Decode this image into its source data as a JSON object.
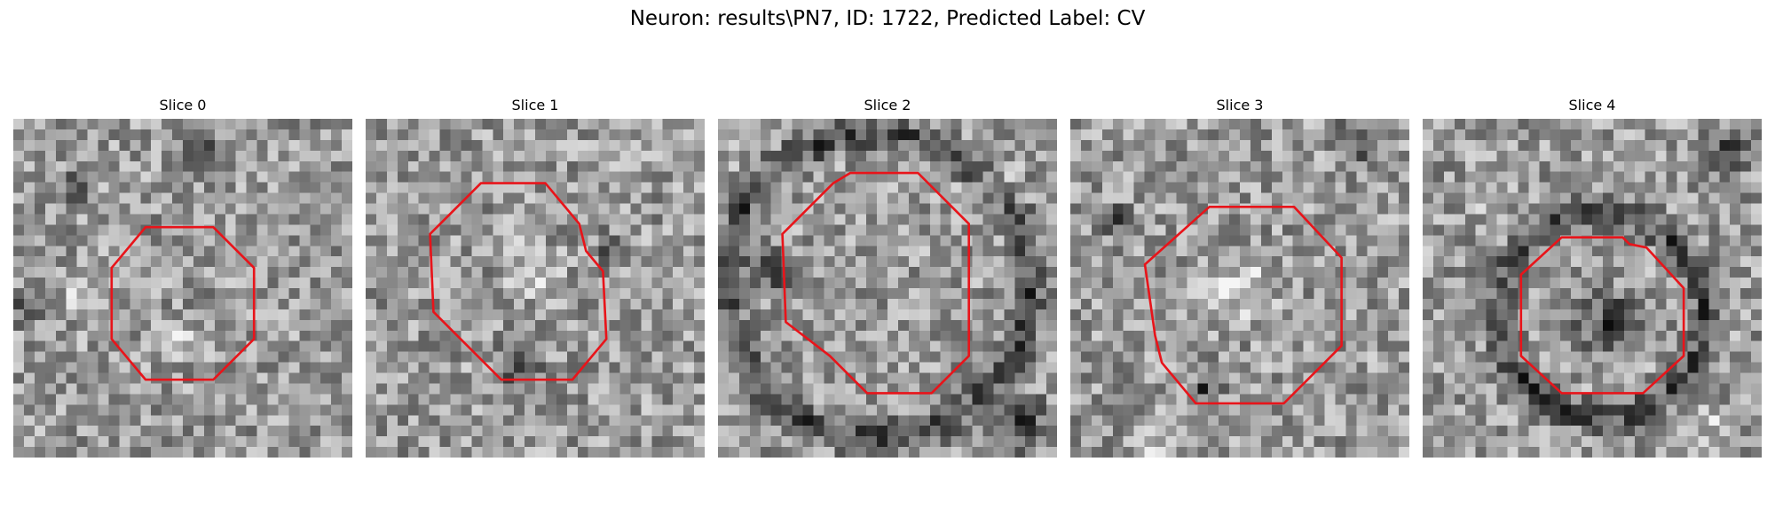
{
  "figure": {
    "title": "Neuron: results\\PN7, ID: 1722, Predicted Label: CV"
  },
  "panels": [
    {
      "title": "Slice 0",
      "contour_color": "#e8141a",
      "contour": [
        [
          0.39,
          0.32
        ],
        [
          0.59,
          0.32
        ],
        [
          0.71,
          0.44
        ],
        [
          0.71,
          0.65
        ],
        [
          0.59,
          0.77
        ],
        [
          0.39,
          0.77
        ],
        [
          0.29,
          0.65
        ],
        [
          0.29,
          0.44
        ]
      ],
      "dark_regions": [
        [
          0.05,
          0.55,
          0.08
        ],
        [
          0.55,
          0.1,
          0.07
        ],
        [
          0.2,
          0.2,
          0.06
        ]
      ],
      "bright_regions": [
        [
          0.48,
          0.66,
          0.08
        ],
        [
          0.2,
          0.52,
          0.06
        ]
      ]
    },
    {
      "title": "Slice 1",
      "contour_color": "#e8141a",
      "contour": [
        [
          0.34,
          0.19
        ],
        [
          0.53,
          0.19
        ],
        [
          0.63,
          0.31
        ],
        [
          0.65,
          0.39
        ],
        [
          0.7,
          0.45
        ],
        [
          0.71,
          0.65
        ],
        [
          0.61,
          0.77
        ],
        [
          0.4,
          0.77
        ],
        [
          0.2,
          0.57
        ],
        [
          0.19,
          0.34
        ]
      ],
      "dark_regions": [
        [
          0.45,
          0.72,
          0.1
        ],
        [
          0.72,
          0.38,
          0.06
        ]
      ],
      "bright_regions": [
        [
          0.48,
          0.45,
          0.12
        ]
      ]
    },
    {
      "title": "Slice 2",
      "contour_color": "#e8141a",
      "contour": [
        [
          0.39,
          0.16
        ],
        [
          0.59,
          0.16
        ],
        [
          0.74,
          0.31
        ],
        [
          0.74,
          0.7
        ],
        [
          0.63,
          0.81
        ],
        [
          0.44,
          0.81
        ],
        [
          0.33,
          0.7
        ],
        [
          0.2,
          0.6
        ],
        [
          0.19,
          0.34
        ],
        [
          0.34,
          0.19
        ]
      ],
      "dark_ring": [
        0.47,
        0.49,
        0.45
      ],
      "dark_regions": [
        [
          0.9,
          0.9,
          0.12
        ],
        [
          0.15,
          0.45,
          0.1
        ]
      ],
      "bright_regions": [
        [
          0.82,
          0.18,
          0.08
        ]
      ]
    },
    {
      "title": "Slice 3",
      "contour_color": "#e8141a",
      "contour": [
        [
          0.41,
          0.26
        ],
        [
          0.66,
          0.26
        ],
        [
          0.8,
          0.41
        ],
        [
          0.8,
          0.67
        ],
        [
          0.63,
          0.84
        ],
        [
          0.37,
          0.84
        ],
        [
          0.27,
          0.72
        ],
        [
          0.25,
          0.64
        ],
        [
          0.22,
          0.43
        ]
      ],
      "dark_regions": [
        [
          0.85,
          0.08,
          0.1
        ],
        [
          0.15,
          0.3,
          0.07
        ],
        [
          0.4,
          0.8,
          0.07
        ]
      ],
      "bright_regions": [
        [
          0.5,
          0.5,
          0.15
        ],
        [
          0.25,
          0.95,
          0.1
        ]
      ]
    },
    {
      "title": "Slice 4",
      "contour_color": "#e8141a",
      "contour": [
        [
          0.41,
          0.35
        ],
        [
          0.59,
          0.35
        ],
        [
          0.61,
          0.37
        ],
        [
          0.66,
          0.38
        ],
        [
          0.77,
          0.5
        ],
        [
          0.77,
          0.7
        ],
        [
          0.65,
          0.81
        ],
        [
          0.41,
          0.81
        ],
        [
          0.29,
          0.7
        ],
        [
          0.29,
          0.46
        ]
      ],
      "dark_ring": [
        0.53,
        0.58,
        0.3
      ],
      "dark_regions": [
        [
          0.9,
          0.1,
          0.1
        ],
        [
          0.55,
          0.6,
          0.14
        ]
      ],
      "bright_regions": [
        [
          0.2,
          0.2,
          0.1
        ],
        [
          0.85,
          0.9,
          0.08
        ]
      ]
    }
  ]
}
